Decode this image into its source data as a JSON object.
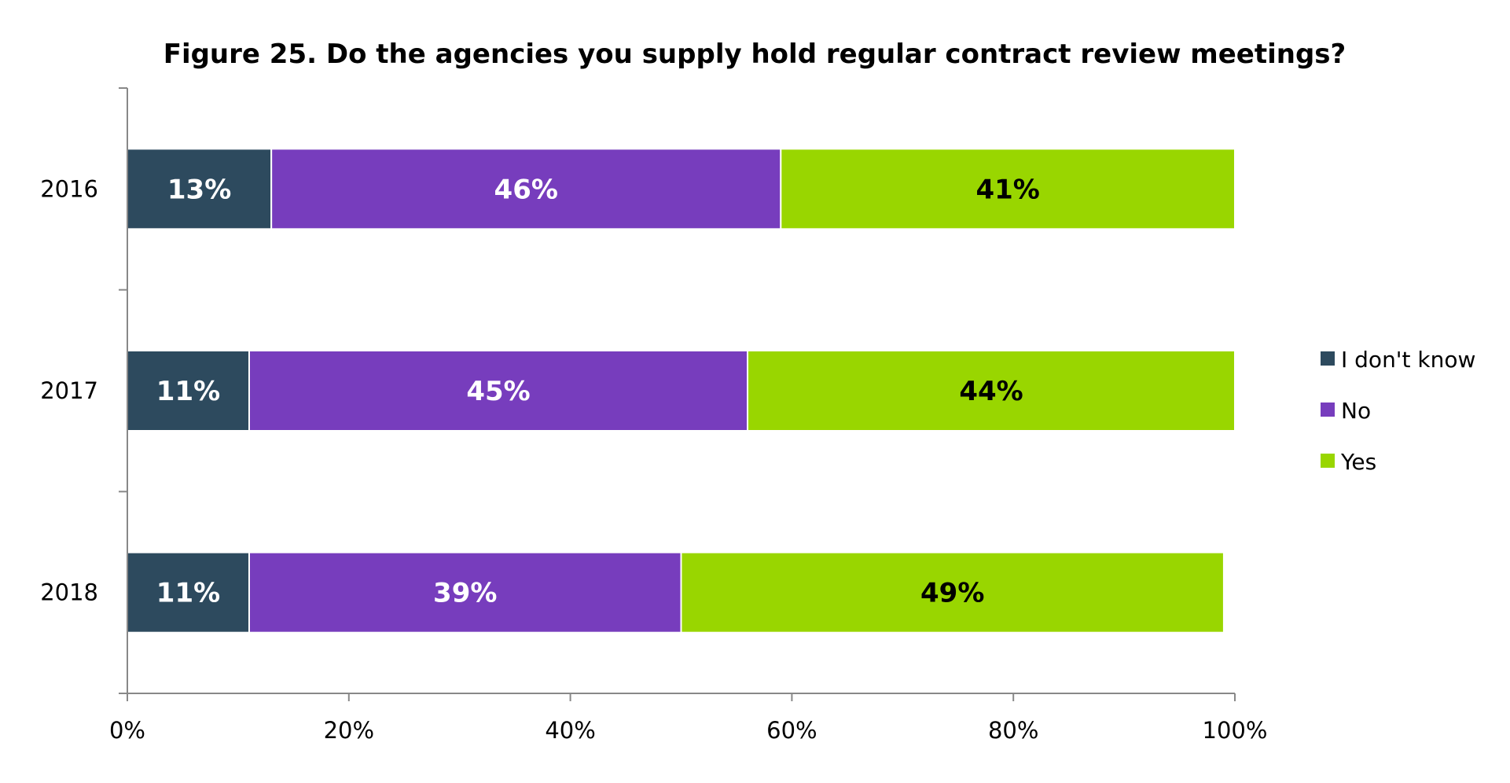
{
  "chart_data": {
    "type": "bar",
    "orientation": "horizontal",
    "stacked": true,
    "title": "Figure 25. Do the agencies you supply hold regular contract review meetings?",
    "categories": [
      "2016",
      "2017",
      "2018"
    ],
    "series": [
      {
        "name": "I don't know",
        "values": [
          13,
          11,
          11
        ],
        "labels": [
          "13%",
          "11%",
          "11%"
        ],
        "color": "#2d4a5e",
        "label_color": "#ffffff"
      },
      {
        "name": "No",
        "values": [
          46,
          45,
          39
        ],
        "labels": [
          "46%",
          "45%",
          "39%"
        ],
        "color": "#773dbd",
        "label_color": "#ffffff"
      },
      {
        "name": "Yes",
        "values": [
          41,
          44,
          49
        ],
        "labels": [
          "41%",
          "44%",
          "49%"
        ],
        "color": "#99d600",
        "label_color": "#000000"
      }
    ],
    "xlim": [
      0,
      100
    ],
    "xticks": [
      "0%",
      "20%",
      "40%",
      "60%",
      "80%",
      "100%"
    ],
    "grid": false,
    "legend_position": "right"
  }
}
